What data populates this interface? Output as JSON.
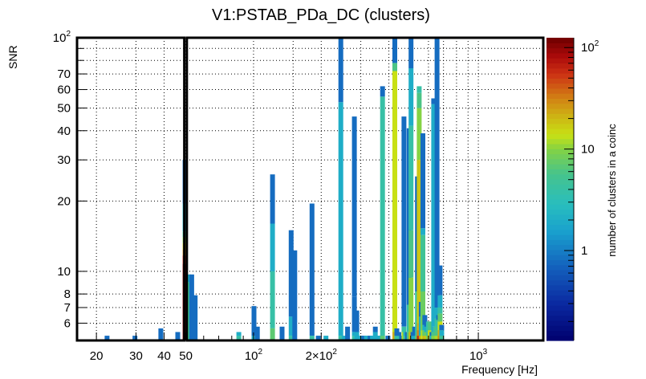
{
  "chart_data": {
    "type": "heatmap",
    "title": "V1:PSTAB_PDa_DC (clusters)",
    "xlabel": "Frequency [Hz]",
    "ylabel": "SNR",
    "colorbar_label": "number of clusters in a coinc",
    "x_scale": "log",
    "y_scale": "log",
    "z_scale": "log",
    "xlim": [
      16.4,
      1945
    ],
    "ylim": [
      5.06,
      100
    ],
    "zlim": [
      0.13,
      125
    ],
    "grid": true,
    "x_ticks": [
      {
        "value": 20,
        "label": "20"
      },
      {
        "value": 30,
        "label": "30"
      },
      {
        "value": 40,
        "label": "40"
      },
      {
        "value": 50,
        "label": "50"
      },
      {
        "value": 100,
        "label": "10^2"
      },
      {
        "value": 200,
        "label": "2×10^2"
      },
      {
        "value": 1000,
        "label": "10^3"
      }
    ],
    "y_ticks": [
      {
        "value": 6,
        "label": "6"
      },
      {
        "value": 7,
        "label": "7"
      },
      {
        "value": 8,
        "label": "8"
      },
      {
        "value": 10,
        "label": "10"
      },
      {
        "value": 20,
        "label": "20"
      },
      {
        "value": 30,
        "label": "30"
      },
      {
        "value": 40,
        "label": "40"
      },
      {
        "value": 50,
        "label": "50"
      },
      {
        "value": 60,
        "label": "60"
      },
      {
        "value": 70,
        "label": "70"
      },
      {
        "value": 100,
        "label": "10^2"
      }
    ],
    "z_ticks": [
      {
        "value": 1,
        "label": "1"
      },
      {
        "value": 10,
        "label": "10"
      },
      {
        "value": 100,
        "label": "10^2"
      }
    ],
    "highlight_boxes": [
      {
        "x_range": [
          16.4,
          49.2
        ],
        "y_range": [
          5.06,
          100
        ]
      },
      {
        "x_range": [
          50.5,
          1945
        ],
        "y_range": [
          5.06,
          100
        ]
      }
    ],
    "bars": [
      {
        "f": 22.3,
        "segments": [
          [
            5.06,
            5.3,
            0.8
          ]
        ]
      },
      {
        "f": 29.7,
        "segments": [
          [
            5.06,
            5.3,
            0.8
          ]
        ]
      },
      {
        "f": 38.7,
        "segments": [
          [
            5.06,
            5.7,
            0.8
          ]
        ]
      },
      {
        "f": 46.0,
        "segments": [
          [
            5.06,
            5.5,
            0.8
          ]
        ]
      },
      {
        "f": 49.6,
        "segments": [
          [
            5.06,
            10.8,
            110
          ],
          [
            10.8,
            11.7,
            60
          ],
          [
            11.7,
            12.4,
            30
          ],
          [
            12.4,
            13.2,
            18
          ],
          [
            13.2,
            14.0,
            10
          ],
          [
            14.0,
            14.8,
            5
          ],
          [
            14.8,
            19.5,
            2
          ],
          [
            19.5,
            30,
            0.8
          ]
        ]
      },
      {
        "f": 51.4,
        "segments": [
          [
            5.06,
            9.0,
            5
          ],
          [
            9.0,
            9.7,
            2
          ]
        ]
      },
      {
        "f": 53.1,
        "segments": [
          [
            5.06,
            9.7,
            0.8
          ]
        ]
      },
      {
        "f": 55.0,
        "segments": [
          [
            5.06,
            7.9,
            0.8
          ]
        ]
      },
      {
        "f": 86.0,
        "segments": [
          [
            5.06,
            5.3,
            4
          ],
          [
            5.3,
            5.5,
            2
          ]
        ]
      },
      {
        "f": 100.5,
        "segments": [
          [
            5.06,
            5.3,
            2
          ],
          [
            5.3,
            7.1,
            0.8
          ]
        ]
      },
      {
        "f": 104.0,
        "segments": [
          [
            5.06,
            5.8,
            0.8
          ]
        ]
      },
      {
        "f": 121.5,
        "segments": [
          [
            5.06,
            5.7,
            7
          ],
          [
            5.7,
            10.0,
            4
          ],
          [
            10.0,
            16.0,
            2
          ],
          [
            16.0,
            26,
            0.8
          ]
        ]
      },
      {
        "f": 134.0,
        "segments": [
          [
            5.06,
            5.8,
            0.8
          ]
        ]
      },
      {
        "f": 147.0,
        "segments": [
          [
            5.06,
            5.3,
            4
          ],
          [
            5.3,
            6.4,
            2
          ],
          [
            6.4,
            15,
            0.8
          ]
        ]
      },
      {
        "f": 152.5,
        "segments": [
          [
            5.06,
            12.3,
            0.8
          ]
        ]
      },
      {
        "f": 182.0,
        "segments": [
          [
            5.06,
            5.3,
            4
          ],
          [
            5.3,
            19.5,
            0.8
          ]
        ]
      },
      {
        "f": 194.0,
        "segments": [
          [
            5.06,
            5.3,
            0.8
          ]
        ]
      },
      {
        "f": 210.0,
        "segments": [
          [
            5.06,
            5.3,
            2
          ]
        ]
      },
      {
        "f": 244.5,
        "segments": [
          [
            5.06,
            5.3,
            4
          ],
          [
            5.3,
            53,
            2
          ],
          [
            53,
            100,
            0.8
          ]
        ]
      },
      {
        "f": 253.0,
        "segments": [
          [
            5.06,
            5.3,
            2
          ]
        ]
      },
      {
        "f": 262.0,
        "segments": [
          [
            5.06,
            5.8,
            0.8
          ]
        ]
      },
      {
        "f": 281.0,
        "segments": [
          [
            5.06,
            5.3,
            4
          ],
          [
            5.3,
            5.5,
            2
          ],
          [
            5.5,
            7.8,
            0.8
          ],
          [
            7.8,
            46,
            0.8
          ]
        ]
      },
      {
        "f": 288.0,
        "segments": [
          [
            5.06,
            5.5,
            2
          ],
          [
            5.5,
            6.8,
            0.8
          ]
        ]
      },
      {
        "f": 301.0,
        "segments": [
          [
            5.06,
            5.3,
            2
          ]
        ]
      },
      {
        "f": 310.0,
        "segments": [
          [
            5.06,
            5.3,
            0.8
          ]
        ]
      },
      {
        "f": 318.0,
        "segments": [
          [
            5.06,
            5.3,
            2
          ]
        ]
      },
      {
        "f": 330.0,
        "segments": [
          [
            5.06,
            5.3,
            0.8
          ]
        ]
      },
      {
        "f": 338.0,
        "segments": [
          [
            5.06,
            5.3,
            2
          ]
        ]
      },
      {
        "f": 348.0,
        "segments": [
          [
            5.06,
            5.5,
            2
          ],
          [
            5.5,
            5.8,
            0.8
          ]
        ]
      },
      {
        "f": 358.0,
        "segments": [
          [
            5.06,
            5.3,
            2
          ]
        ]
      },
      {
        "f": 366.0,
        "segments": [
          [
            5.06,
            5.3,
            2
          ]
        ]
      },
      {
        "f": 375.0,
        "segments": [
          [
            5.06,
            5.3,
            7
          ],
          [
            5.3,
            56,
            4
          ],
          [
            56,
            62,
            0.8
          ]
        ]
      },
      {
        "f": 396.0,
        "segments": [
          [
            5.06,
            5.3,
            0.8
          ]
        ]
      },
      {
        "f": 425.0,
        "segments": [
          [
            5.06,
            5.5,
            22
          ],
          [
            5.5,
            72,
            14
          ],
          [
            72,
            78,
            6
          ],
          [
            78,
            100,
            0.8
          ]
        ]
      },
      {
        "f": 434.0,
        "segments": [
          [
            5.06,
            5.3,
            4
          ],
          [
            5.3,
            5.7,
            0.8
          ]
        ]
      },
      {
        "f": 443.0,
        "segments": [
          [
            5.06,
            5.3,
            4
          ],
          [
            5.3,
            5.5,
            0.8
          ]
        ]
      },
      {
        "f": 456.0,
        "segments": [
          [
            5.06,
            5.3,
            0.8
          ]
        ]
      },
      {
        "f": 467.0,
        "segments": [
          [
            5.06,
            5.5,
            12
          ],
          [
            5.5,
            5.8,
            4
          ],
          [
            5.8,
            46,
            0.8
          ]
        ]
      },
      {
        "f": 475.0,
        "segments": [
          [
            5.06,
            5.3,
            4
          ],
          [
            5.3,
            5.5,
            2
          ]
        ]
      },
      {
        "f": 484.0,
        "segments": [
          [
            5.06,
            5.5,
            0.8
          ]
        ]
      },
      {
        "f": 492.0,
        "segments": [
          [
            5.06,
            5.5,
            6
          ],
          [
            5.5,
            7.2,
            4
          ],
          [
            7.2,
            41,
            0.8
          ]
        ]
      },
      {
        "f": 502.0,
        "segments": [
          [
            5.06,
            5.5,
            20
          ],
          [
            5.5,
            9.4,
            10
          ],
          [
            9.4,
            15,
            6
          ],
          [
            15,
            42,
            4
          ],
          [
            42,
            74,
            2
          ],
          [
            74,
            100,
            0.8
          ]
        ]
      },
      {
        "f": 512.0,
        "segments": [
          [
            5.06,
            5.3,
            2
          ],
          [
            5.3,
            5.5,
            0.8
          ]
        ]
      },
      {
        "f": 521.0,
        "segments": [
          [
            5.06,
            5.3,
            2
          ],
          [
            5.3,
            5.8,
            0.8
          ]
        ]
      },
      {
        "f": 536.0,
        "segments": [
          [
            5.06,
            5.3,
            8
          ],
          [
            5.3,
            8.2,
            4
          ],
          [
            8.2,
            25.5,
            0.8
          ]
        ]
      },
      {
        "f": 546.0,
        "segments": [
          [
            5.06,
            5.3,
            60
          ],
          [
            5.3,
            5.6,
            30
          ],
          [
            5.6,
            6.0,
            22
          ],
          [
            6.0,
            30,
            18
          ],
          [
            30,
            50,
            10
          ],
          [
            50,
            58,
            6
          ],
          [
            58,
            62,
            4
          ]
        ]
      },
      {
        "f": 557.0,
        "segments": [
          [
            5.06,
            5.3,
            24
          ],
          [
            5.3,
            6.4,
            2
          ],
          [
            6.4,
            7.4,
            0.8
          ]
        ]
      },
      {
        "f": 567.0,
        "segments": [
          [
            5.06,
            5.3,
            14
          ],
          [
            5.3,
            5.6,
            12
          ],
          [
            5.6,
            8.2,
            8
          ],
          [
            8.2,
            14.3,
            5
          ],
          [
            14.3,
            15.3,
            2
          ],
          [
            15.3,
            39,
            0.8
          ]
        ]
      },
      {
        "f": 578.0,
        "segments": [
          [
            5.06,
            5.3,
            20
          ],
          [
            5.3,
            5.6,
            7
          ],
          [
            5.6,
            5.9,
            2
          ],
          [
            5.9,
            6.5,
            0.8
          ]
        ]
      },
      {
        "f": 589.0,
        "segments": [
          [
            5.06,
            5.3,
            18
          ],
          [
            5.3,
            5.5,
            8
          ],
          [
            5.5,
            5.8,
            2
          ],
          [
            5.8,
            6.1,
            0.8
          ]
        ]
      },
      {
        "f": 600.0,
        "segments": [
          [
            5.06,
            5.3,
            10
          ],
          [
            5.3,
            5.5,
            5
          ],
          [
            5.5,
            6.1,
            4
          ]
        ]
      },
      {
        "f": 611.0,
        "segments": [
          [
            5.06,
            5.3,
            20
          ],
          [
            5.3,
            5.6,
            15
          ],
          [
            5.6,
            6.1,
            6
          ]
        ]
      },
      {
        "f": 622.0,
        "segments": [
          [
            5.06,
            5.3,
            2
          ],
          [
            5.3,
            5.5,
            0.8
          ]
        ]
      },
      {
        "f": 633.0,
        "segments": [
          [
            5.06,
            5.3,
            10
          ],
          [
            5.3,
            5.5,
            6
          ],
          [
            5.5,
            5.8,
            2
          ],
          [
            5.8,
            52,
            2
          ],
          [
            52,
            55,
            0.8
          ]
        ]
      },
      {
        "f": 644.0,
        "segments": [
          [
            5.06,
            5.3,
            10
          ],
          [
            5.3,
            5.5,
            6
          ],
          [
            5.5,
            5.8,
            4
          ],
          [
            5.8,
            6.3,
            2
          ]
        ]
      },
      {
        "f": 655.0,
        "segments": [
          [
            5.06,
            5.3,
            12
          ],
          [
            5.3,
            5.8,
            6
          ],
          [
            5.8,
            6.3,
            4
          ],
          [
            6.3,
            7.0,
            2
          ],
          [
            7.0,
            100,
            0.8
          ]
        ]
      },
      {
        "f": 666.0,
        "segments": [
          [
            5.06,
            5.3,
            12
          ],
          [
            5.3,
            5.6,
            6
          ],
          [
            5.6,
            6.2,
            4
          ],
          [
            6.2,
            6.5,
            0.8
          ]
        ]
      },
      {
        "f": 676.0,
        "segments": [
          [
            5.06,
            5.3,
            30
          ],
          [
            5.3,
            5.6,
            22
          ],
          [
            5.6,
            6.1,
            14
          ],
          [
            6.1,
            6.6,
            7
          ],
          [
            6.6,
            7.0,
            4
          ],
          [
            7.0,
            7.9,
            2
          ],
          [
            7.9,
            10.6,
            0.8
          ]
        ]
      },
      {
        "f": 687.0,
        "segments": [
          [
            5.06,
            5.3,
            5
          ],
          [
            5.3,
            5.6,
            2
          ],
          [
            5.6,
            5.9,
            0.8
          ]
        ]
      }
    ]
  }
}
